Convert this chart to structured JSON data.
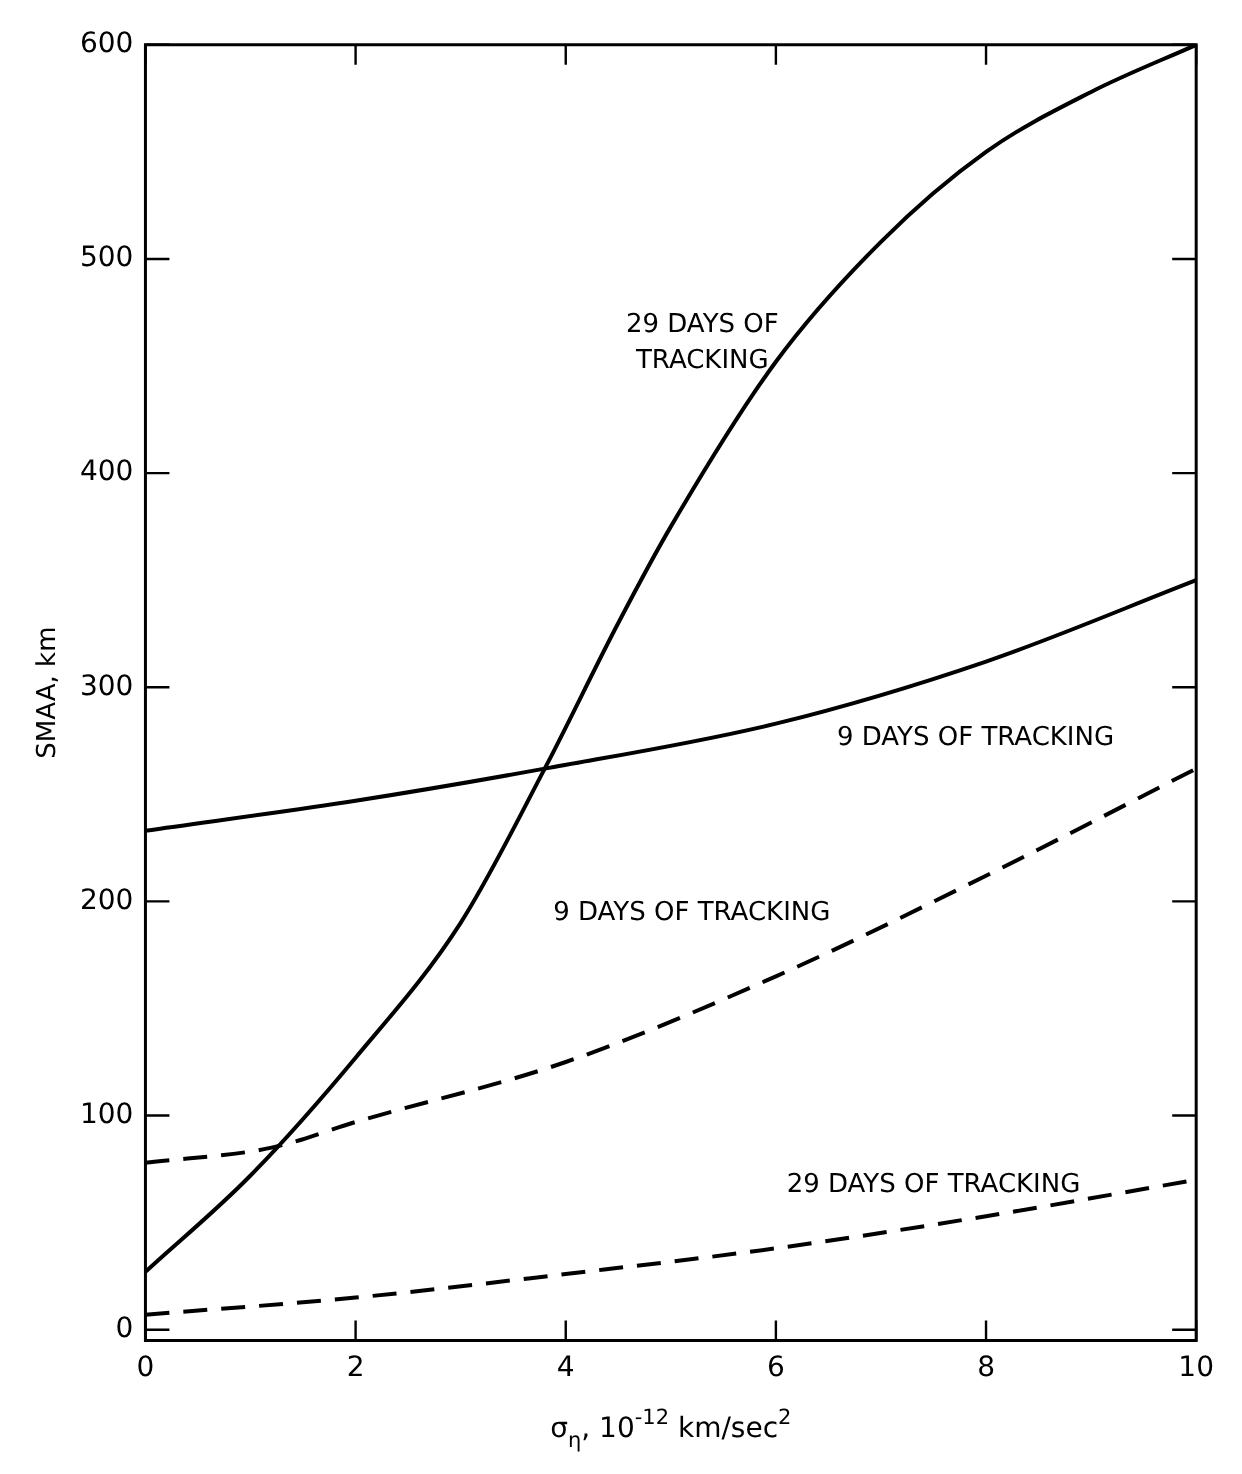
{
  "chart_data": {
    "type": "line",
    "xlabel": "σ$_{η}$, 10$^{-12}$ km/sec$^{2}$",
    "ylabel": "SMAA, km",
    "xlim": [
      0,
      10
    ],
    "ylim": [
      -5,
      600
    ],
    "xticks": [
      0,
      2,
      4,
      6,
      8,
      10
    ],
    "yticks": [
      0,
      100,
      200,
      300,
      400,
      500,
      600
    ],
    "grid": false,
    "legend": false,
    "marker": "none",
    "series": [
      {
        "name": "29 DAYS OF TRACKING",
        "color": "#000000",
        "line_style": "solid",
        "x": [
          0,
          1,
          2,
          3,
          3.8,
          4.5,
          5,
          6,
          7,
          8,
          9,
          10
        ],
        "values": [
          27,
          72,
          127,
          190,
          262,
          330,
          375,
          452,
          508,
          550,
          578,
          600
        ]
      },
      {
        "name": "9 DAYS OF TRACKING",
        "color": "#000000",
        "line_style": "solid",
        "x": [
          0,
          2,
          3.8,
          6,
          8,
          10
        ],
        "values": [
          233,
          247,
          262,
          283,
          312,
          350
        ]
      },
      {
        "name": "9 DAYS OF TRACKING",
        "color": "#000000",
        "line_style": "dashed",
        "x": [
          0,
          1.2,
          2,
          4,
          6,
          8,
          10
        ],
        "values": [
          78,
          85,
          97,
          125,
          165,
          212,
          262
        ]
      },
      {
        "name": "29 DAYS OF TRACKING",
        "color": "#000000",
        "line_style": "dashed",
        "x": [
          0,
          2,
          4,
          6,
          8,
          10
        ],
        "values": [
          7,
          15,
          26,
          38,
          53,
          70
        ]
      }
    ]
  }
}
